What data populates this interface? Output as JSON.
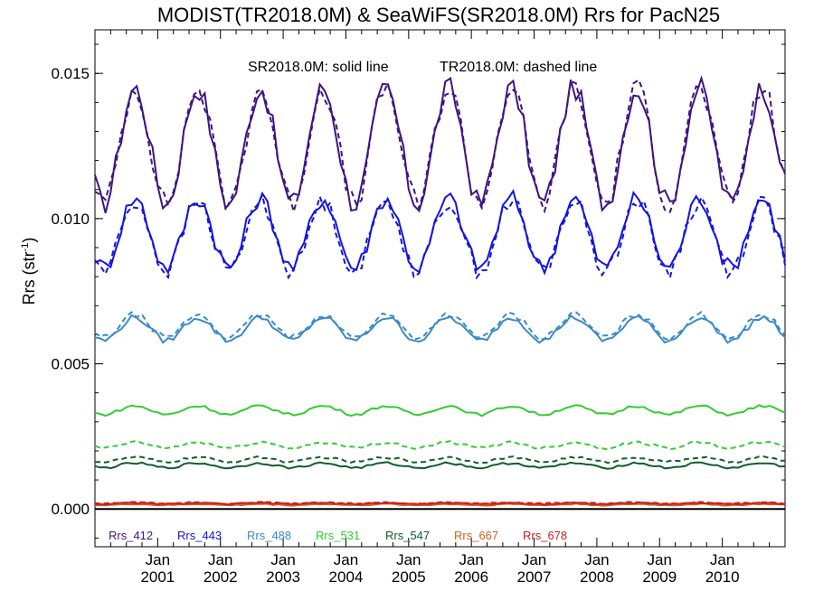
{
  "chart_data": {
    "type": "line",
    "title": "MODIST(TR2018.0M) & SeaWiFS(SR2018.0M)  Rrs for PacN25",
    "annotation": {
      "solid": "SR2018.0M: solid line",
      "dashed": "TR2018.0M: dashed line"
    },
    "ylabel": "Rrs (str",
    "ylabel_sup": "-1",
    "ylabel_close": ")",
    "ylim": [
      -0.0013,
      0.0165
    ],
    "y_ticks": [
      {
        "value": 0.0,
        "label": "0.000"
      },
      {
        "value": 0.005,
        "label": "0.005"
      },
      {
        "value": 0.01,
        "label": "0.010"
      },
      {
        "value": 0.015,
        "label": "0.015"
      }
    ],
    "xlim": [
      2000.0,
      2011.0
    ],
    "x_ticks": [
      {
        "value": 2001.0,
        "month": "Jan",
        "year": "2001"
      },
      {
        "value": 2002.0,
        "month": "Jan",
        "year": "2002"
      },
      {
        "value": 2003.0,
        "month": "Jan",
        "year": "2003"
      },
      {
        "value": 2004.0,
        "month": "Jan",
        "year": "2004"
      },
      {
        "value": 2005.0,
        "month": "Jan",
        "year": "2005"
      },
      {
        "value": 2006.0,
        "month": "Jan",
        "year": "2006"
      },
      {
        "value": 2007.0,
        "month": "Jan",
        "year": "2007"
      },
      {
        "value": 2008.0,
        "month": "Jan",
        "year": "2008"
      },
      {
        "value": 2009.0,
        "month": "Jan",
        "year": "2009"
      },
      {
        "value": 2010.0,
        "month": "Jan",
        "year": "2010"
      }
    ],
    "baseline": 0.0,
    "series": [
      {
        "name": "Rrs_412",
        "color": "#3d1580",
        "solid": {
          "base": 0.0125,
          "amp": 0.002,
          "noise": 0.0004
        },
        "dashed": {
          "base": 0.0125,
          "amp": 0.002,
          "noise": 0.0004
        }
      },
      {
        "name": "Rrs_443",
        "color": "#1414e0",
        "solid": {
          "base": 0.0095,
          "amp": 0.0012,
          "noise": 0.0003
        },
        "dashed": {
          "base": 0.0094,
          "amp": 0.0012,
          "noise": 0.0003
        }
      },
      {
        "name": "Rrs_488",
        "color": "#3a8bc7",
        "solid": {
          "base": 0.0062,
          "amp": 0.0004,
          "noise": 0.0001
        },
        "dashed": {
          "base": 0.0063,
          "amp": 0.0004,
          "noise": 0.0001
        }
      },
      {
        "name": "Rrs_531",
        "color": "#33cc33",
        "solid": {
          "base": 0.0034,
          "amp": 0.00015,
          "noise": 5e-05
        },
        "dashed": {
          "base": 0.0022,
          "amp": 0.0001,
          "noise": 5e-05
        }
      },
      {
        "name": "Rrs_547",
        "color": "#0f5e2a",
        "solid": {
          "base": 0.0015,
          "amp": 8e-05,
          "noise": 4e-05
        },
        "dashed": {
          "base": 0.0017,
          "amp": 8e-05,
          "noise": 4e-05
        }
      },
      {
        "name": "Rrs_667",
        "color": "#d4601a",
        "solid": {
          "base": 0.00015,
          "amp": 2e-05,
          "noise": 2e-05
        },
        "dashed": {
          "base": 0.00017,
          "amp": 2e-05,
          "noise": 2e-05
        }
      },
      {
        "name": "Rrs_678",
        "color": "#cc2020",
        "solid": {
          "base": 0.00019,
          "amp": 2e-05,
          "noise": 2e-05
        },
        "dashed": {
          "base": 0.00021,
          "amp": 2e-05,
          "noise": 2e-05
        }
      }
    ]
  }
}
